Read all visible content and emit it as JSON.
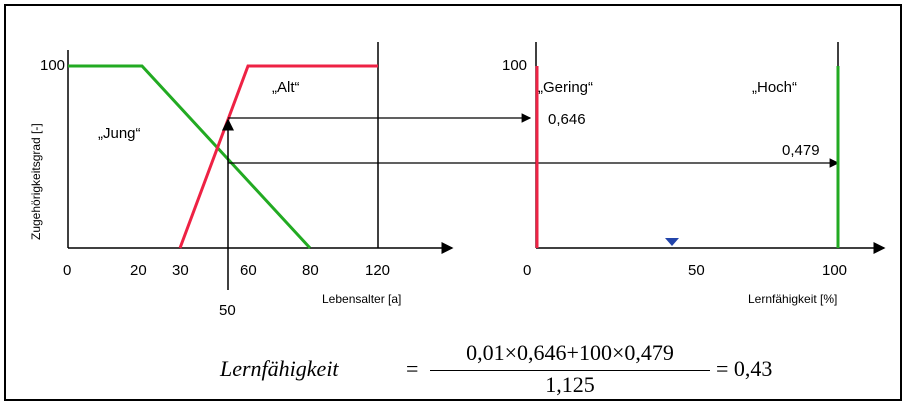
{
  "left_chart": {
    "ylabel": "Zugehörigkeitsgrad [-]",
    "xlabel": "Lebensalter [a]",
    "y_tick_100": "100",
    "x_ticks": [
      "0",
      "20",
      "30",
      "60",
      "80",
      "120"
    ],
    "x_marker": "50",
    "label_jung": "„Jung“",
    "label_alt": "„Alt“",
    "colors": {
      "jung": "#22aa22",
      "alt": "#ee2244"
    }
  },
  "right_chart": {
    "xlabel": "Lernfähigkeit [%]",
    "y_tick_100": "100",
    "x_ticks": [
      "0",
      "50",
      "100"
    ],
    "label_gering": "„Gering“",
    "label_hoch": "„Hoch“",
    "value_gering": "0,646",
    "value_hoch": "0,479",
    "colors": {
      "gering": "#ee2244",
      "hoch": "#22aa22",
      "marker": "#2244aa"
    }
  },
  "formula": {
    "lhs": "Lernfähigkeit",
    "equals": "=",
    "numerator": "0,01×0,646+100×0,479",
    "denominator": "1,125",
    "result": "= 0,43"
  },
  "chart_data": [
    {
      "type": "line",
      "xlabel": "Lebensalter [a]",
      "ylabel": "Zugehörigkeitsgrad [-]",
      "series": [
        {
          "name": "„Jung“",
          "x": [
            0,
            20,
            80
          ],
          "y": [
            1,
            1,
            0
          ]
        },
        {
          "name": "„Alt“",
          "x": [
            30,
            60,
            120
          ],
          "y": [
            0,
            1,
            1
          ]
        }
      ],
      "input_x": 50,
      "memberships": {
        "„Jung“": 0.479,
        "„Alt“": 0.646
      }
    },
    {
      "type": "bar",
      "xlabel": "Lernfähigkeit [%]",
      "series": [
        {
          "name": "„Gering“",
          "x": 0,
          "y": 0.646
        },
        {
          "name": "„Hoch“",
          "x": 100,
          "y": 0.479
        }
      ],
      "centroid_marker_x": 43
    }
  ]
}
